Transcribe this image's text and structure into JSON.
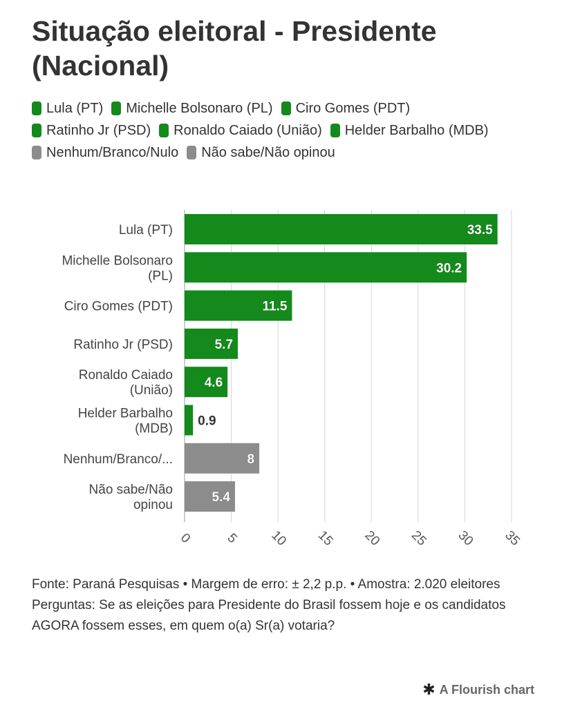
{
  "title": "Situação eleitoral - Presidente (Nacional)",
  "legend": [
    {
      "label": "Lula (PT)",
      "color": "#138a1b"
    },
    {
      "label": "Michelle Bolsonaro (PL)",
      "color": "#138a1b"
    },
    {
      "label": "Ciro Gomes (PDT)",
      "color": "#138a1b"
    },
    {
      "label": "Ratinho Jr (PSD)",
      "color": "#138a1b"
    },
    {
      "label": "Ronaldo Caiado (União)",
      "color": "#138a1b"
    },
    {
      "label": "Helder Barbalho (MDB)",
      "color": "#138a1b"
    },
    {
      "label": "Nenhum/Branco/Nulo",
      "color": "#8c8c8c"
    },
    {
      "label": "Não sabe/Não opinou",
      "color": "#8c8c8c"
    }
  ],
  "chart_data": {
    "type": "bar",
    "orientation": "horizontal",
    "categories": [
      "Lula (PT)",
      "Michelle Bolsonaro (PL)",
      "Ciro Gomes (PDT)",
      "Ratinho Jr (PSD)",
      "Ronaldo Caiado (União)",
      "Helder Barbalho (MDB)",
      "Nenhum/Branco/Nulo",
      "Não sabe/Não opinou"
    ],
    "category_labels": [
      [
        "Lula (PT)"
      ],
      [
        "Michelle Bolsonaro",
        "(PL)"
      ],
      [
        "Ciro Gomes (PDT)"
      ],
      [
        "Ratinho Jr (PSD)"
      ],
      [
        "Ronaldo Caiado",
        "(União)"
      ],
      [
        "Helder Barbalho",
        "(MDB)"
      ],
      [
        "Nenhum/Branco/..."
      ],
      [
        "Não sabe/Não",
        "opinou"
      ]
    ],
    "values": [
      33.5,
      30.2,
      11.5,
      5.7,
      4.6,
      0.9,
      8,
      5.4
    ],
    "value_labels": [
      "33.5",
      "30.2",
      "11.5",
      "5.7",
      "4.6",
      "0.9",
      "8",
      "5.4"
    ],
    "colors": [
      "#138a1b",
      "#138a1b",
      "#138a1b",
      "#138a1b",
      "#138a1b",
      "#138a1b",
      "#8c8c8c",
      "#8c8c8c"
    ],
    "xlim": [
      0,
      35
    ],
    "xticks": [
      0,
      5,
      10,
      15,
      20,
      25,
      30,
      35
    ],
    "grid": true,
    "legend_position": "top-left"
  },
  "source": {
    "line1": "Fonte: Paraná Pesquisas • Margem de erro: ± 2,2 p.p. • Amostra: 2.020 eleitores",
    "line2": "Perguntas: Se as eleições para Presidente do Brasil fossem hoje e os candidatos AGORA fossem esses, em quem o(a) Sr(a) votaria?"
  },
  "credit": "A Flourish chart",
  "credit_icon": "asterisk-icon"
}
